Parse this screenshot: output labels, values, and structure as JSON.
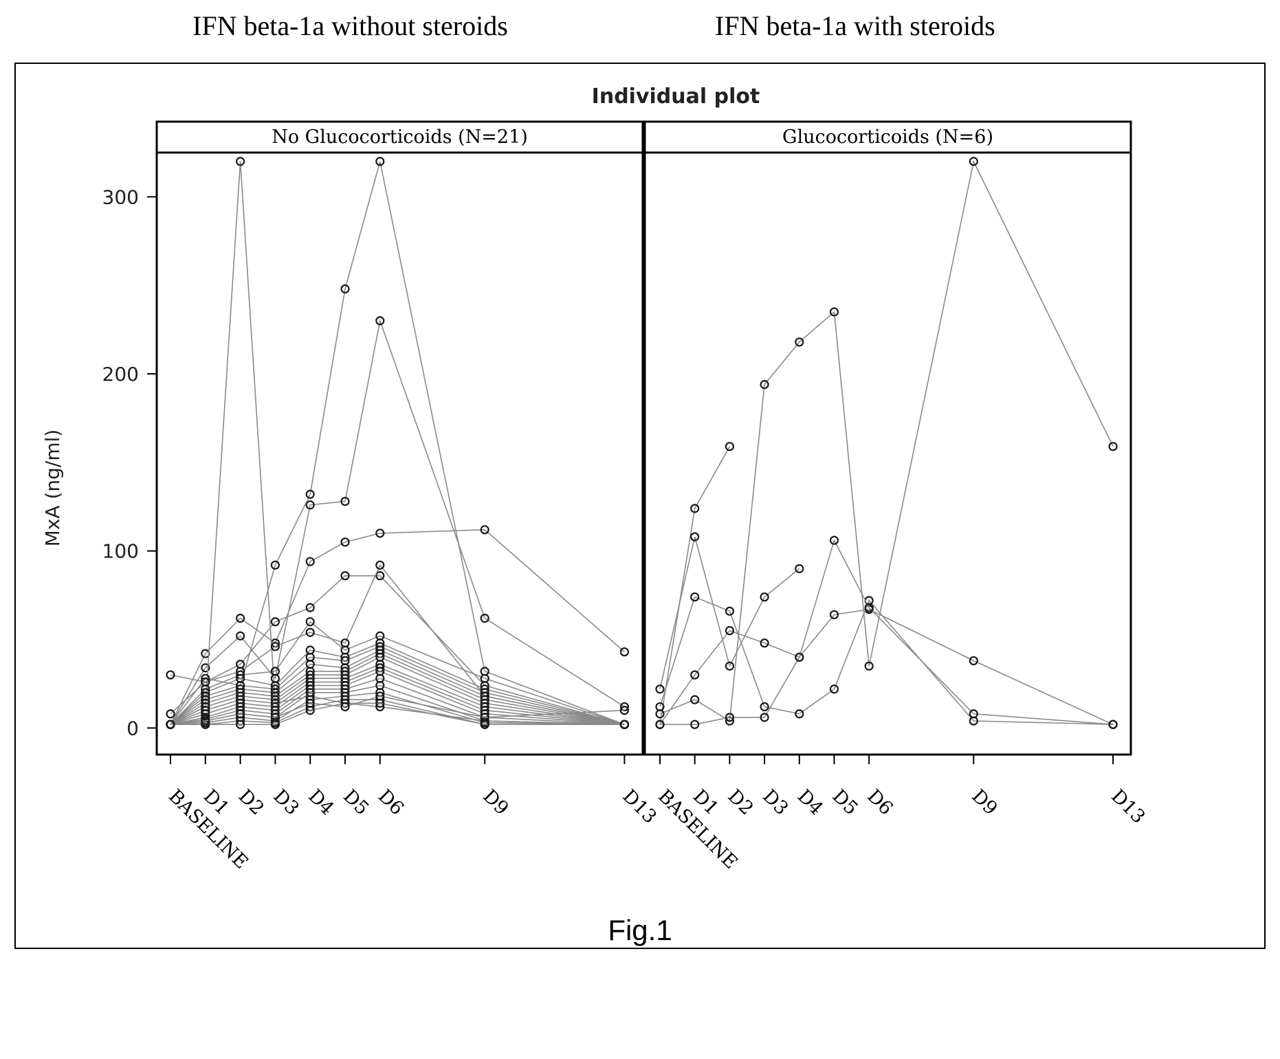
{
  "headers": {
    "left": "IFN beta-1a without steroids",
    "right": "IFN beta-1a with steroids"
  },
  "caption": "Fig.1",
  "chart_data": {
    "type": "line",
    "title": "Individual plot",
    "ylabel": "MxA (ng/ml)",
    "xlabel": "",
    "ylim": [
      -15,
      325
    ],
    "yticks": [
      0,
      100,
      200,
      300
    ],
    "categories": [
      "BASELINE",
      "D1",
      "D2",
      "D3",
      "D4",
      "D5",
      "D6",
      "D9",
      "D13"
    ],
    "x_days": [
      0,
      1,
      2,
      3,
      4,
      5,
      6,
      9,
      13
    ],
    "grid": false,
    "colors": {
      "line": "#8a8a8a",
      "marker": "#1a1a1a",
      "frame": "#000000"
    },
    "panels": [
      {
        "label": "No Glucocorticoids (N=21)",
        "series": [
          {
            "points": [
              [
                0,
                2
              ],
              [
                1,
                42
              ],
              [
                2,
                62
              ],
              [
                3,
                48
              ],
              [
                4,
                94
              ],
              [
                5,
                105
              ],
              [
                6,
                110
              ],
              [
                9,
                112
              ],
              [
                13,
                43
              ]
            ]
          },
          {
            "points": [
              [
                0,
                2
              ],
              [
                1,
                34
              ],
              [
                2,
                52
              ],
              [
                3,
                28
              ],
              [
                4,
                126
              ],
              [
                5,
                128
              ],
              [
                6,
                230
              ],
              [
                9,
                62
              ],
              [
                13,
                12
              ]
            ]
          },
          {
            "points": [
              [
                0,
                2
              ],
              [
                1,
                12
              ],
              [
                2,
                320
              ],
              [
                3,
                14
              ],
              [
                4,
                18
              ],
              [
                5,
                14
              ],
              [
                6,
                12
              ],
              [
                9,
                4
              ],
              [
                13,
                2
              ]
            ]
          },
          {
            "points": [
              [
                0,
                2
              ],
              [
                1,
                28
              ],
              [
                2,
                24
              ],
              [
                3,
                92
              ],
              [
                4,
                132
              ],
              [
                5,
                248
              ],
              [
                6,
                320
              ],
              [
                9,
                32
              ],
              [
                13,
                2
              ]
            ]
          },
          {
            "points": [
              [
                0,
                8
              ],
              [
                1,
                26
              ],
              [
                2,
                36
              ],
              [
                3,
                60
              ],
              [
                4,
                68
              ],
              [
                5,
                86
              ],
              [
                6,
                86
              ],
              [
                9,
                24
              ],
              [
                13,
                2
              ]
            ]
          },
          {
            "points": [
              [
                0,
                30
              ],
              [
                1,
                26
              ],
              [
                2,
                32
              ],
              [
                3,
                46
              ],
              [
                4,
                54
              ],
              [
                5,
                48
              ],
              [
                6,
                92
              ],
              [
                9,
                18
              ],
              [
                13,
                2
              ]
            ]
          },
          {
            "points": [
              [
                0,
                2
              ],
              [
                1,
                22
              ],
              [
                2,
                30
              ],
              [
                3,
                32
              ],
              [
                4,
                60
              ],
              [
                5,
                44
              ],
              [
                6,
                52
              ],
              [
                9,
                28
              ],
              [
                13,
                2
              ]
            ]
          },
          {
            "points": [
              [
                0,
                2
              ],
              [
                1,
                20
              ],
              [
                2,
                28
              ],
              [
                3,
                24
              ],
              [
                4,
                44
              ],
              [
                5,
                40
              ],
              [
                6,
                48
              ],
              [
                9,
                22
              ],
              [
                13,
                2
              ]
            ]
          },
          {
            "points": [
              [
                0,
                2
              ],
              [
                1,
                18
              ],
              [
                2,
                24
              ],
              [
                3,
                22
              ],
              [
                4,
                40
              ],
              [
                5,
                38
              ],
              [
                6,
                46
              ],
              [
                9,
                20
              ],
              [
                13,
                2
              ]
            ]
          },
          {
            "points": [
              [
                0,
                2
              ],
              [
                1,
                16
              ],
              [
                2,
                22
              ],
              [
                3,
                20
              ],
              [
                4,
                36
              ],
              [
                5,
                34
              ],
              [
                6,
                44
              ],
              [
                9,
                18
              ],
              [
                13,
                2
              ]
            ]
          },
          {
            "points": [
              [
                0,
                2
              ],
              [
                1,
                14
              ],
              [
                2,
                20
              ],
              [
                3,
                18
              ],
              [
                4,
                32
              ],
              [
                5,
                32
              ],
              [
                6,
                42
              ],
              [
                9,
                16
              ],
              [
                13,
                2
              ]
            ]
          },
          {
            "points": [
              [
                0,
                2
              ],
              [
                1,
                12
              ],
              [
                2,
                18
              ],
              [
                3,
                16
              ],
              [
                4,
                30
              ],
              [
                5,
                30
              ],
              [
                6,
                40
              ],
              [
                9,
                14
              ],
              [
                13,
                2
              ]
            ]
          },
          {
            "points": [
              [
                0,
                2
              ],
              [
                1,
                10
              ],
              [
                2,
                16
              ],
              [
                3,
                14
              ],
              [
                4,
                28
              ],
              [
                5,
                28
              ],
              [
                6,
                36
              ],
              [
                9,
                12
              ],
              [
                13,
                2
              ]
            ]
          },
          {
            "points": [
              [
                0,
                2
              ],
              [
                1,
                8
              ],
              [
                2,
                14
              ],
              [
                3,
                12
              ],
              [
                4,
                26
              ],
              [
                5,
                26
              ],
              [
                6,
                34
              ],
              [
                9,
                10
              ],
              [
                13,
                2
              ]
            ]
          },
          {
            "points": [
              [
                0,
                2
              ],
              [
                1,
                6
              ],
              [
                2,
                12
              ],
              [
                3,
                10
              ],
              [
                4,
                24
              ],
              [
                5,
                24
              ],
              [
                6,
                32
              ],
              [
                9,
                8
              ],
              [
                13,
                2
              ]
            ]
          },
          {
            "points": [
              [
                0,
                2
              ],
              [
                1,
                5
              ],
              [
                2,
                10
              ],
              [
                3,
                8
              ],
              [
                4,
                22
              ],
              [
                5,
                22
              ],
              [
                6,
                28
              ],
              [
                9,
                6
              ],
              [
                13,
                2
              ]
            ]
          },
          {
            "points": [
              [
                0,
                2
              ],
              [
                1,
                4
              ],
              [
                2,
                8
              ],
              [
                3,
                6
              ],
              [
                4,
                20
              ],
              [
                5,
                20
              ],
              [
                6,
                24
              ],
              [
                9,
                4
              ],
              [
                13,
                2
              ]
            ]
          },
          {
            "points": [
              [
                0,
                2
              ],
              [
                1,
                3
              ],
              [
                2,
                6
              ],
              [
                3,
                4
              ],
              [
                4,
                16
              ],
              [
                5,
                18
              ],
              [
                6,
                20
              ],
              [
                9,
                3
              ],
              [
                13,
                2
              ]
            ]
          },
          {
            "points": [
              [
                0,
                2
              ],
              [
                1,
                2
              ],
              [
                2,
                4
              ],
              [
                3,
                3
              ],
              [
                4,
                12
              ],
              [
                5,
                16
              ],
              [
                6,
                16
              ],
              [
                9,
                2
              ],
              [
                13,
                2
              ]
            ]
          },
          {
            "points": [
              [
                0,
                2
              ],
              [
                1,
                2
              ],
              [
                2,
                2
              ],
              [
                3,
                2
              ],
              [
                4,
                10
              ],
              [
                5,
                14
              ],
              [
                6,
                14
              ],
              [
                9,
                2
              ],
              [
                13,
                2
              ]
            ]
          },
          {
            "points": [
              [
                0,
                2
              ],
              [
                1,
                4
              ],
              [
                2,
                8
              ],
              [
                3,
                6
              ],
              [
                4,
                14
              ],
              [
                5,
                12
              ],
              [
                6,
                18
              ],
              [
                9,
                6
              ],
              [
                13,
                10
              ]
            ]
          }
        ]
      },
      {
        "label": "Glucocorticoids (N=6)",
        "series": [
          {
            "points": [
              [
                0,
                2
              ],
              [
                1,
                124
              ],
              [
                2,
                159
              ]
            ]
          },
          {
            "points": [
              [
                0,
                2
              ],
              [
                1,
                30
              ],
              [
                2,
                55
              ],
              [
                3,
                48
              ],
              [
                4,
                40
              ],
              [
                5,
                64
              ],
              [
                6,
                67
              ],
              [
                9,
                38
              ],
              [
                13,
                2
              ]
            ]
          },
          {
            "points": [
              [
                0,
                22
              ],
              [
                1,
                108
              ],
              [
                2,
                35
              ],
              [
                3,
                74
              ],
              [
                4,
                90
              ]
            ]
          },
          {
            "points": [
              [
                0,
                8
              ],
              [
                1,
                16
              ],
              [
                2,
                4
              ],
              [
                3,
                194
              ],
              [
                4,
                218
              ],
              [
                5,
                235
              ],
              [
                6,
                35
              ],
              [
                9,
                320
              ],
              [
                13,
                159
              ]
            ]
          },
          {
            "points": [
              [
                0,
                12
              ],
              [
                1,
                74
              ],
              [
                2,
                66
              ],
              [
                3,
                12
              ],
              [
                4,
                8
              ],
              [
                5,
                22
              ],
              [
                6,
                72
              ],
              [
                9,
                4
              ],
              [
                13,
                2
              ]
            ]
          },
          {
            "points": [
              [
                0,
                2
              ],
              [
                1,
                2
              ],
              [
                2,
                6
              ],
              [
                3,
                6
              ],
              [
                4,
                40
              ],
              [
                5,
                106
              ],
              [
                6,
                68
              ],
              [
                9,
                8
              ],
              [
                13,
                2
              ]
            ]
          }
        ]
      }
    ]
  }
}
